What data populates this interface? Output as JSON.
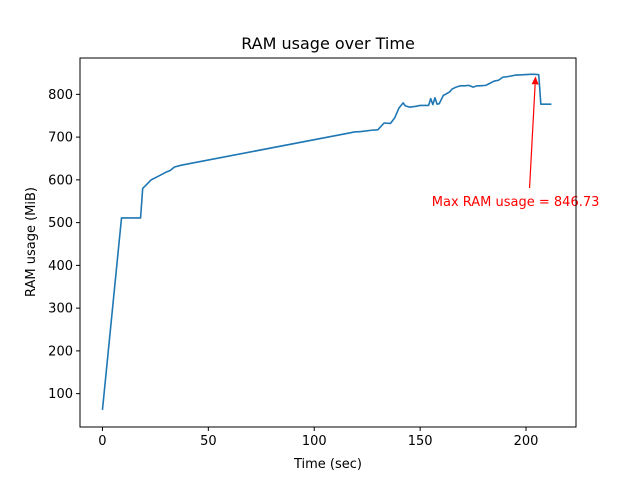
{
  "chart_data": {
    "type": "line",
    "title": "RAM usage over Time",
    "xlabel": "Time (sec)",
    "ylabel": "RAM usage (MiB)",
    "xlim": [
      -10.6,
      223.6
    ],
    "ylim": [
      22,
      885
    ],
    "xticks": [
      0,
      50,
      100,
      150,
      200
    ],
    "yticks": [
      100,
      200,
      300,
      400,
      500,
      600,
      700,
      800
    ],
    "grid": false,
    "legend": "none",
    "series": [
      {
        "color": "#1f77b4",
        "x": [
          0,
          9,
          18,
          19,
          21,
          23,
          25,
          27,
          30,
          32,
          34,
          37,
          40,
          117,
          119,
          122,
          127,
          130,
          133,
          136,
          138,
          140,
          142,
          143,
          145,
          148,
          150,
          154,
          155,
          156,
          157,
          158,
          159,
          161,
          162,
          164,
          165,
          167,
          169,
          171,
          173,
          175,
          177,
          178,
          181,
          183,
          185,
          187,
          189,
          192,
          195,
          196,
          199,
          202,
          204,
          206,
          207,
          208,
          212
        ],
        "y": [
          62,
          511,
          511,
          580,
          590,
          600,
          605,
          610,
          618,
          622,
          630,
          634,
          637,
          710,
          712,
          713,
          716,
          717,
          733,
          732,
          745,
          768,
          780,
          773,
          770,
          772,
          774,
          774,
          790,
          776,
          792,
          777,
          778,
          798,
          800,
          806,
          812,
          817,
          820,
          820,
          821,
          817,
          820,
          820,
          821,
          826,
          831,
          833,
          840,
          842,
          845,
          845,
          846,
          846.73,
          846.73,
          846,
          777,
          777,
          777
        ]
      }
    ],
    "annotation": {
      "text": "Max RAM usage = 846.73",
      "color": "#ff0000",
      "point": [
        204.5,
        846.73
      ],
      "text_pos": [
        155.5,
        548
      ]
    }
  }
}
